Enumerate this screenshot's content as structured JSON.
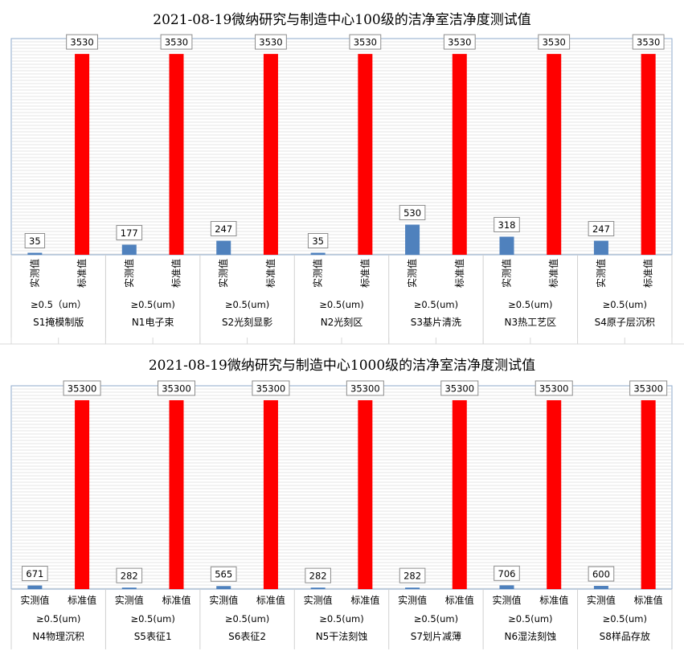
{
  "chart_data": [
    {
      "type": "bar",
      "title": "2021-08-19微纳研究与制造中心100级的洁净室洁净度测试值",
      "series_names": [
        "实测值",
        "标准值"
      ],
      "condition_label": "≥0.5（um）",
      "colors": {
        "measured": "#4f81bd",
        "standard": "#ff0000"
      },
      "ylim": [
        0,
        3800
      ],
      "groups": [
        {
          "room": "S1掩模制版",
          "condition": "≥0.5（um）",
          "measured": 35,
          "standard": 3530
        },
        {
          "room": "N1电子束",
          "condition": "≥0.5(um)",
          "measured": 177,
          "standard": 3530
        },
        {
          "room": "S2光刻显影",
          "condition": "≥0.5(um)",
          "measured": 247,
          "standard": 3530
        },
        {
          "room": "N2光刻区",
          "condition": "≥0.5(um)",
          "measured": 35,
          "standard": 3530
        },
        {
          "room": "S3基片清洗",
          "condition": "≥0.5(um)",
          "measured": 530,
          "standard": 3530
        },
        {
          "room": "N3热工艺区",
          "condition": "≥0.5(um)",
          "measured": 318,
          "standard": 3530
        },
        {
          "room": "S4原子层沉积",
          "condition": "≥0.5(um)",
          "measured": 247,
          "standard": 3530
        }
      ]
    },
    {
      "type": "bar",
      "title": "2021-08-19微纳研究与制造中心1000级的洁净室洁净度测试值",
      "series_names": [
        "实测值",
        "标准值"
      ],
      "colors": {
        "measured": "#4f81bd",
        "standard": "#ff0000"
      },
      "ylim": [
        0,
        38000
      ],
      "groups": [
        {
          "room": "N4物理沉积",
          "condition": "≥0.5(um)",
          "measured": 671,
          "standard": 35300
        },
        {
          "room": "S5表征1",
          "condition": "≥0.5(um)",
          "measured": 282,
          "standard": 35300
        },
        {
          "room": "S6表征2",
          "condition": "≥0.5(um)",
          "measured": 565,
          "standard": 35300
        },
        {
          "room": "N5干法刻蚀",
          "condition": "≥0.5(um)",
          "measured": 282,
          "standard": 35300
        },
        {
          "room": "S7划片减薄",
          "condition": "≥0.5(um)",
          "measured": 282,
          "standard": 35300
        },
        {
          "room": "N6湿法刻蚀",
          "condition": "≥0.5(um)",
          "measured": 706,
          "standard": 35300
        },
        {
          "room": "S8样品存放",
          "condition": "≥0.5(um)",
          "measured": 600,
          "standard": 35300
        }
      ]
    }
  ]
}
